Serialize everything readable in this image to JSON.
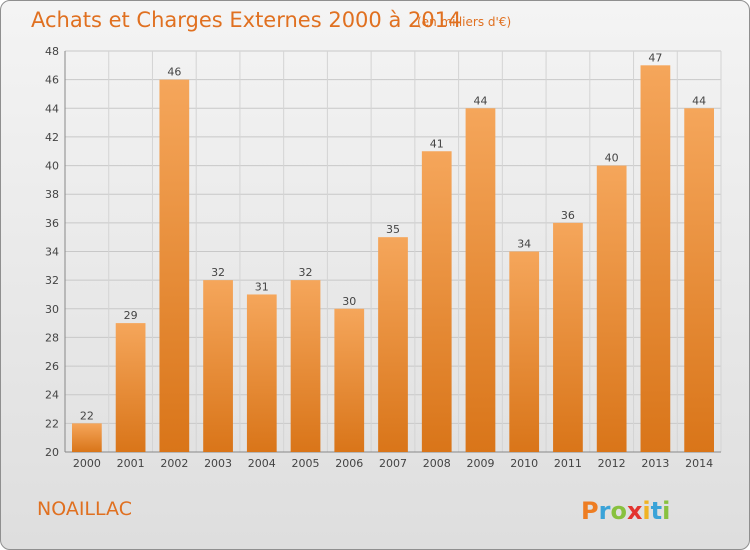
{
  "chart_data": {
    "type": "bar",
    "title": "Achats et Charges Externes 2000 à 2014",
    "subtitle": "(en milliers d'€)",
    "categories": [
      "2000",
      "2001",
      "2002",
      "2003",
      "2004",
      "2005",
      "2006",
      "2007",
      "2008",
      "2009",
      "2010",
      "2011",
      "2012",
      "2013",
      "2014"
    ],
    "values": [
      22,
      29,
      46,
      32,
      31,
      32,
      30,
      35,
      41,
      44,
      34,
      36,
      40,
      47,
      44
    ],
    "ylim": [
      20,
      48
    ],
    "yticks": [
      20,
      22,
      24,
      26,
      28,
      30,
      32,
      34,
      36,
      38,
      40,
      42,
      44,
      46,
      48
    ],
    "grid": true,
    "bar_color_top": "#f5a65b",
    "bar_color_bottom": "#d97519"
  },
  "place_name": "NOAILLAC",
  "logo": {
    "text": "Proxiti",
    "letters": [
      "P",
      "r",
      "o",
      "x",
      "i",
      "t",
      "i"
    ],
    "colors": [
      "#ee7d22",
      "#3aa3d8",
      "#88c13e",
      "#e3342f",
      "#f0b323",
      "#3aa3d8",
      "#88c13e"
    ]
  }
}
